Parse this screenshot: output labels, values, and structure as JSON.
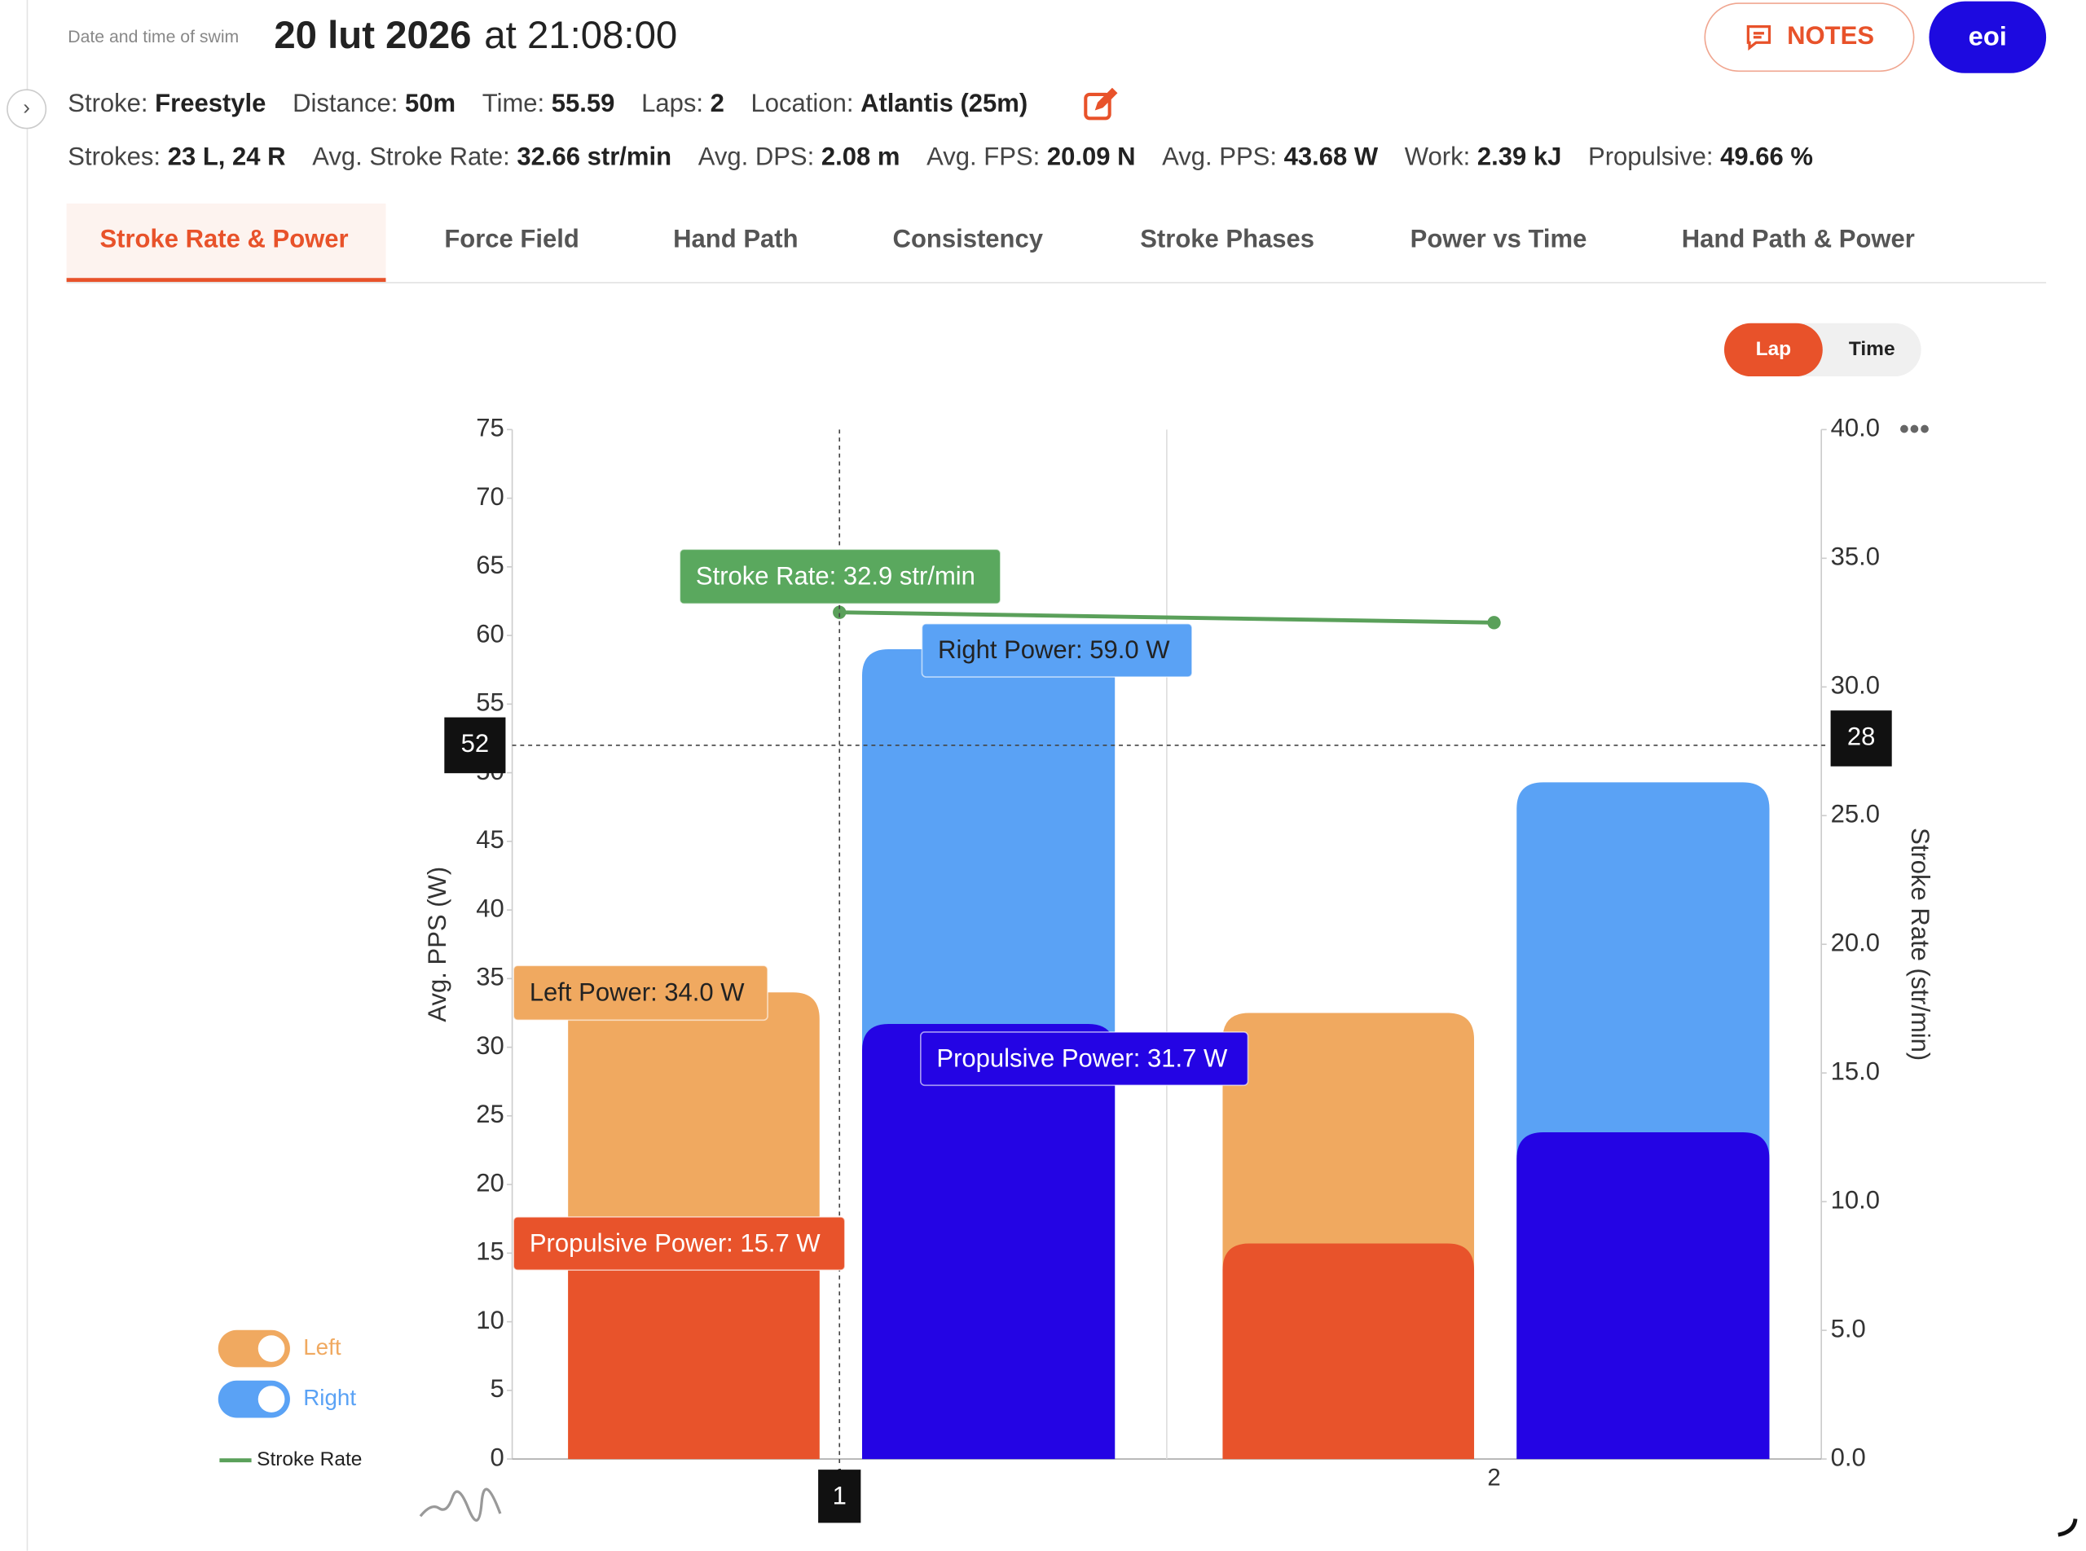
{
  "header": {
    "date_label": "Date and time of swim",
    "date": "20 lut 2026",
    "time": "at 21:08:00",
    "notes_button": "NOTES",
    "user_button": "eoi"
  },
  "stats": {
    "row1": [
      {
        "label": "Stroke:",
        "value": "Freestyle"
      },
      {
        "label": "Distance:",
        "value": "50m"
      },
      {
        "label": "Time:",
        "value": "55.59"
      },
      {
        "label": "Laps:",
        "value": "2"
      },
      {
        "label": "Location:",
        "value": "Atlantis (25m)"
      }
    ],
    "row2": [
      {
        "label": "Strokes:",
        "value": "23 L, 24 R"
      },
      {
        "label": "Avg. Stroke Rate:",
        "value": "32.66 str/min"
      },
      {
        "label": "Avg. DPS:",
        "value": "2.08 m"
      },
      {
        "label": "Avg. FPS:",
        "value": "20.09 N"
      },
      {
        "label": "Avg. PPS:",
        "value": "43.68 W"
      },
      {
        "label": "Work:",
        "value": "2.39 kJ"
      },
      {
        "label": "Propulsive:",
        "value": "49.66 %"
      }
    ]
  },
  "tabs": {
    "items": [
      "Stroke Rate & Power",
      "Force Field",
      "Hand Path",
      "Consistency",
      "Stroke Phases",
      "Power vs Time",
      "Hand Path & Power"
    ],
    "active": 0
  },
  "toggle": {
    "items": [
      "Lap",
      "Time"
    ],
    "active": 0
  },
  "chart_data": {
    "type": "bar",
    "categories": [
      "1",
      "2"
    ],
    "ylabel": "Avg. PPS (W)",
    "y2label": "Stroke Rate (str/min)",
    "ylim": [
      0,
      75
    ],
    "yticks": [
      0,
      5,
      10,
      15,
      20,
      25,
      30,
      35,
      40,
      45,
      50,
      55,
      60,
      65,
      70,
      75
    ],
    "y2lim": [
      0,
      40
    ],
    "y2ticks": [
      {
        "value": 0,
        "label": "0.0"
      },
      {
        "value": 5,
        "label": "5.0"
      },
      {
        "value": 10,
        "label": "10.0"
      },
      {
        "value": 15,
        "label": "15.0"
      },
      {
        "value": 20,
        "label": "20.0"
      },
      {
        "value": 25,
        "label": "25.0"
      },
      {
        "value": 30,
        "label": "30.0"
      },
      {
        "value": 35,
        "label": "35.0"
      },
      {
        "value": 40,
        "label": "40.0"
      }
    ],
    "series": [
      {
        "name": "Left",
        "color": "#f0a960",
        "values": [
          34.0,
          32.5
        ],
        "propulsive": [
          15.7,
          15.7
        ],
        "propulsive_color": "#e8532b"
      },
      {
        "name": "Right",
        "color": "#5aa2f5",
        "values": [
          59.0,
          49.3
        ],
        "propulsive": [
          31.7,
          23.8
        ],
        "propulsive_color": "#2404e4"
      },
      {
        "name": "Stroke Rate",
        "type": "line",
        "axis": "y2",
        "color": "#5aa05a",
        "values": [
          32.9,
          32.5
        ]
      }
    ],
    "crosshair": {
      "y": 52,
      "y2": 28
    },
    "tooltips": [
      "Stroke Rate: 32.9 str/min",
      "Right Power: 59.0 W",
      "Left Power: 34.0 W",
      "Propulsive  Power: 15.7 W",
      "Propulsive Power: 31.7 W"
    ]
  }
}
